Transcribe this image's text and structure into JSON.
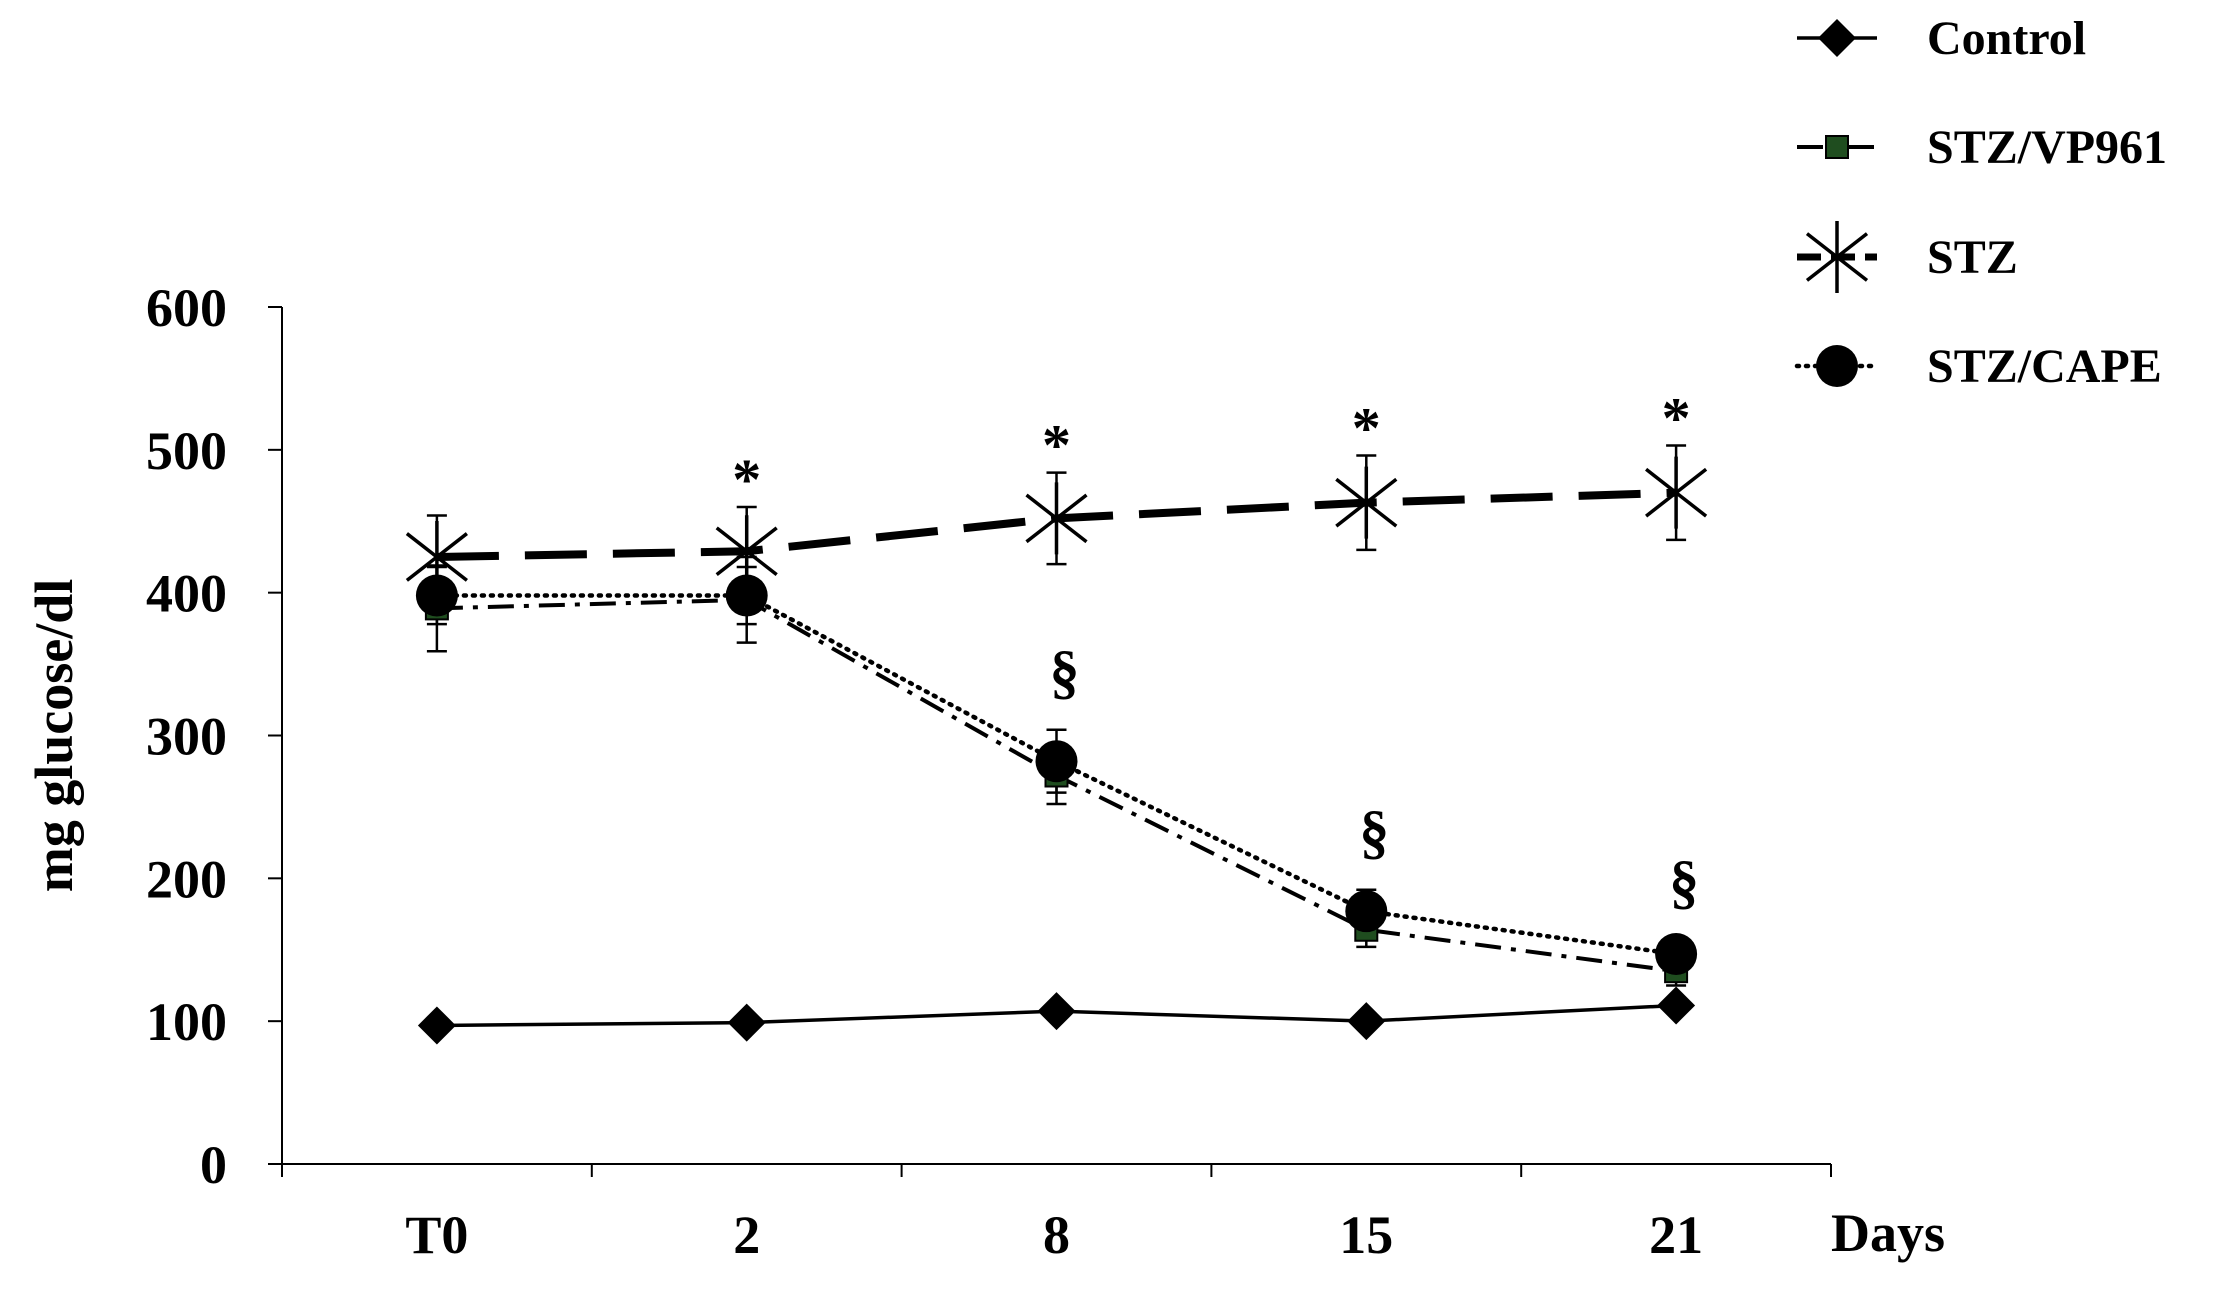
{
  "chart_data": {
    "type": "line",
    "title": "",
    "xlabel": "Days",
    "ylabel": "mg glucose/dl",
    "categories": [
      "T0",
      "2",
      "8",
      "15",
      "21"
    ],
    "ylim": [
      0,
      600
    ],
    "yticks": [
      0,
      100,
      200,
      300,
      400,
      500,
      600
    ],
    "grid": false,
    "legend_position": "top-right",
    "series": [
      {
        "name": "Control",
        "values": [
          97,
          99,
          107,
          100,
          111
        ],
        "errors": [
          0,
          0,
          0,
          0,
          0
        ],
        "marker": "diamond",
        "line": "solid-thin",
        "color": "#000000"
      },
      {
        "name": "STZ/VP961",
        "values": [
          389,
          395,
          272,
          164,
          135
        ],
        "errors": [
          30,
          30,
          20,
          12,
          10
        ],
        "marker": "square",
        "line": "dash-dot",
        "color": "#000000",
        "marker_color": "#1f4d1f"
      },
      {
        "name": "STZ",
        "values": [
          425,
          429,
          452,
          463,
          470
        ],
        "errors": [
          29,
          31,
          32,
          33,
          33
        ],
        "marker": "asterisk",
        "line": "long-dash",
        "color": "#000000"
      },
      {
        "name": "STZ/CAPE",
        "values": [
          398,
          398,
          282,
          177,
          147
        ],
        "errors": [
          20,
          20,
          22,
          15,
          10
        ],
        "marker": "circle",
        "line": "dotted",
        "color": "#000000"
      }
    ],
    "annotations": [
      {
        "category": "2",
        "text": "*"
      },
      {
        "category": "8",
        "text": "*"
      },
      {
        "category": "15",
        "text": "*"
      },
      {
        "category": "21",
        "text": "*"
      },
      {
        "category": "8",
        "text": "§"
      },
      {
        "category": "15",
        "text": "§"
      },
      {
        "category": "21",
        "text": "§"
      }
    ]
  }
}
